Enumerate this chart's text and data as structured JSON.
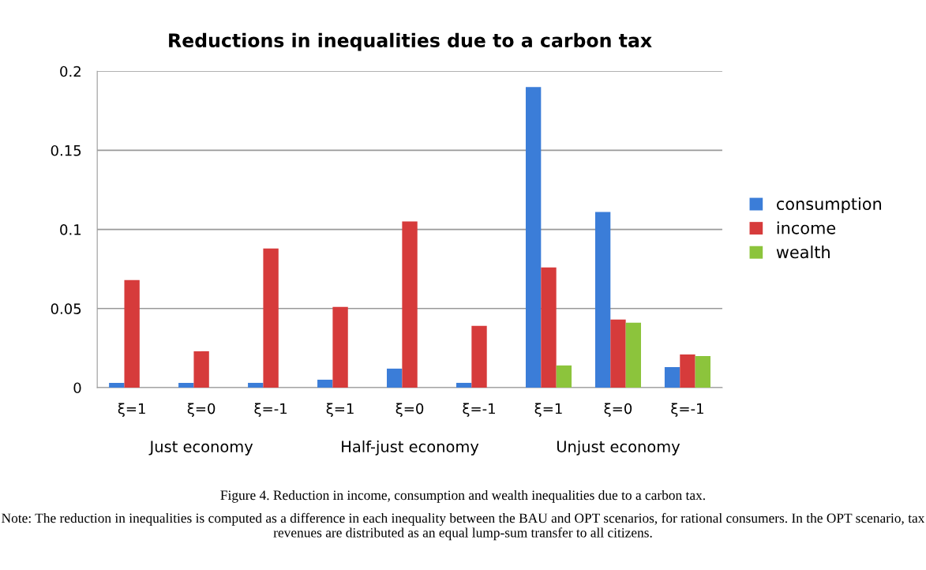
{
  "chart_data": {
    "type": "bar",
    "title": "Reductions in inequalities due to a carbon tax",
    "categories": [
      "ξ=1",
      "ξ=0",
      "ξ=-1",
      "ξ=1",
      "ξ=0",
      "ξ=-1",
      "ξ=1",
      "ξ=0",
      "ξ=-1"
    ],
    "series": [
      {
        "name": "consumption",
        "color": "#3b7dd8",
        "values": [
          0.003,
          0.003,
          0.003,
          0.005,
          0.012,
          0.003,
          0.19,
          0.111,
          0.013
        ]
      },
      {
        "name": "income",
        "color": "#d63b3b",
        "values": [
          0.068,
          0.023,
          0.088,
          0.051,
          0.105,
          0.039,
          0.076,
          0.043,
          0.021
        ]
      },
      {
        "name": "wealth",
        "color": "#8cc43c",
        "values": [
          0,
          0,
          0,
          0,
          0,
          0,
          0.014,
          0.041,
          0.02
        ]
      }
    ],
    "ylim": [
      0,
      0.2
    ],
    "yticks": [
      0,
      0.05,
      0.1,
      0.15,
      0.2
    ],
    "grid": "y",
    "legend": "right",
    "annotations": [
      "Just economy",
      "Half-just economy",
      "Unjust economy",
      "Figure 4. Reduction in income, consumption and wealth inequalities due to a carbon tax.",
      "Note: The reduction in inequalities is computed as a difference in each inequality between the BAU and OPT scenarios, for rational consumers. In the OPT scenario, tax revenues are distributed as an equal lump-sum transfer to all citizens."
    ]
  }
}
